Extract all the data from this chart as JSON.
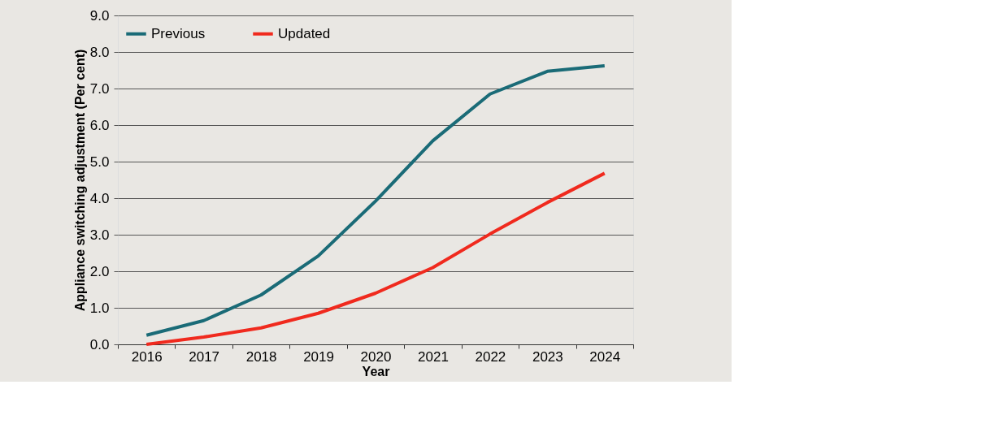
{
  "chart_data": {
    "type": "line",
    "xlabel": "Year",
    "ylabel": "Appliance switching adjustment (Per cent)",
    "categories": [
      "2016",
      "2017",
      "2018",
      "2019",
      "2020",
      "2021",
      "2022",
      "2023",
      "2024"
    ],
    "series": [
      {
        "name": "Previous",
        "color": "#1a6b77",
        "values": [
          0.25,
          0.65,
          1.35,
          2.42,
          3.92,
          5.57,
          6.85,
          7.47,
          7.62
        ]
      },
      {
        "name": "Updated",
        "color": "#f02a1e",
        "values": [
          0.0,
          0.2,
          0.45,
          0.85,
          1.4,
          2.1,
          3.02,
          3.88,
          4.68
        ]
      }
    ],
    "ylim": [
      0,
      9
    ],
    "yticks": [
      {
        "value": 0,
        "label": "0.0"
      },
      {
        "value": 1,
        "label": "1.0"
      },
      {
        "value": 2,
        "label": "2.0"
      },
      {
        "value": 3,
        "label": "3.0"
      },
      {
        "value": 4,
        "label": "4.0"
      },
      {
        "value": 5,
        "label": "5.0"
      },
      {
        "value": 6,
        "label": "6.0"
      },
      {
        "value": 7,
        "label": "7.0"
      },
      {
        "value": 8,
        "label": "8.0"
      },
      {
        "value": 9,
        "label": "9.0"
      }
    ],
    "grid": "y",
    "legend": "top left",
    "marker": "none",
    "line_style": "solid"
  }
}
